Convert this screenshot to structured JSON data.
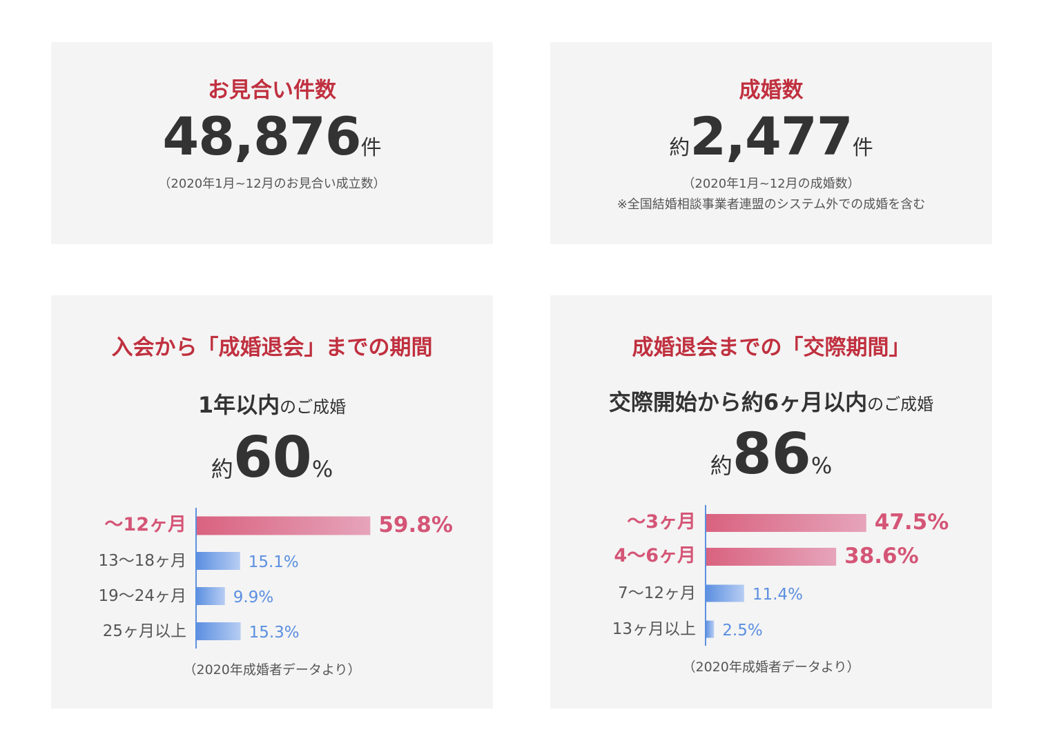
{
  "cards": {
    "matches": {
      "title": "お見合い件数",
      "value": "48,876",
      "unit": "件",
      "note": "（2020年1月~12月のお見合い成立数）"
    },
    "marriages": {
      "title": "成婚数",
      "prefix": "約",
      "value": "2,477",
      "unit": "件",
      "note1": "（2020年1月~12月の成婚数）",
      "note2": "※全国結婚相談事業者連盟のシステム外での成婚を含む"
    },
    "period": {
      "title": "入会から「成婚退会」までの期間",
      "headline_strong": "1年以内",
      "headline_sub": "のご成婚",
      "prefix": "約",
      "value": "60",
      "suffix": "%",
      "footnote": "（2020年成婚者データより）"
    },
    "dating": {
      "title": "成婚退会までの「交際期間」",
      "headline_strong": "交際開始から約6ヶ月以内",
      "headline_sub": "のご成婚",
      "prefix": "約",
      "value": "86",
      "suffix": "%",
      "footnote": "（2020年成婚者データより）"
    }
  },
  "colors": {
    "title_red": "#c0303f",
    "highlight_text": "#d45576",
    "normal_label": "#555555",
    "blue_text": "#5b8fe0",
    "pink_bar_start": "#d9627f",
    "pink_bar_end": "#e6a4bb",
    "blue_bar_start": "#5b8fe0",
    "blue_bar_end": "#b7cdf3",
    "axis": "#5b8fe0"
  },
  "chart_data": [
    {
      "type": "bar",
      "orientation": "horizontal",
      "categories": [
        "〜12ヶ月",
        "13〜18ヶ月",
        "19〜24ヶ月",
        "25ヶ月以上"
      ],
      "values": [
        59.8,
        15.1,
        9.9,
        15.3
      ],
      "labels": [
        "59.8%",
        "15.1%",
        "9.9%",
        "15.3%"
      ],
      "highlight": [
        true,
        false,
        false,
        false
      ],
      "xlim": [
        0,
        100
      ]
    },
    {
      "type": "bar",
      "orientation": "horizontal",
      "categories": [
        "〜3ヶ月",
        "4〜6ヶ月",
        "7〜12ヶ月",
        "13ヶ月以上"
      ],
      "values": [
        47.5,
        38.6,
        11.4,
        2.5
      ],
      "labels": [
        "47.5%",
        "38.6%",
        "11.4%",
        "2.5%"
      ],
      "highlight": [
        true,
        true,
        false,
        false
      ],
      "xlim": [
        0,
        100
      ]
    }
  ]
}
